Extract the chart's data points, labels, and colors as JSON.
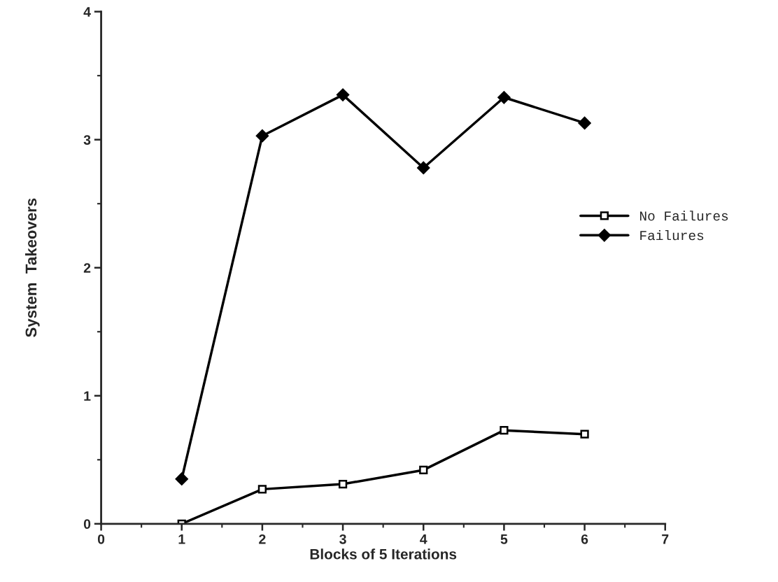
{
  "chart_data": {
    "type": "line",
    "xlabel": "Blocks of 5 Iterations",
    "ylabel": "System  Takeovers",
    "x": [
      1,
      2,
      3,
      4,
      5,
      6
    ],
    "series": [
      {
        "name": "No Failures",
        "color": "#000000",
        "marker": "square",
        "values": [
          0,
          0.27,
          0.31,
          0.42,
          0.73,
          0.7
        ]
      },
      {
        "name": "Failures",
        "color": "#000000",
        "marker": "diamond",
        "values": [
          0.35,
          3.03,
          3.35,
          2.78,
          3.33,
          3.13
        ]
      }
    ],
    "xlim": [
      0,
      7
    ],
    "xticks": [
      0,
      1,
      2,
      3,
      4,
      5,
      6,
      7
    ],
    "ylim": [
      0,
      4
    ],
    "yticks": [
      0,
      1,
      2,
      3,
      4
    ],
    "grid": false,
    "legend": "right",
    "line_style": "solid"
  }
}
